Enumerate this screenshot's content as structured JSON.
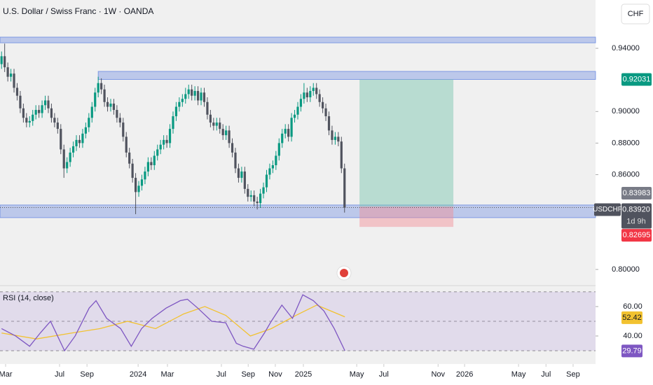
{
  "chart_data": [
    {
      "type": "candlestick",
      "title": "U.S. Dollar / Swiss Franc · 1W · OANDA",
      "currency": "CHF",
      "symbol": "USDCHF",
      "countdown": "1d 9h",
      "up_color": "#089981",
      "down_color": "#50535e",
      "xlim": [
        -0.5,
        190.5
      ],
      "xticks": [
        {
          "value": 1.3,
          "label": "Mar"
        },
        {
          "value": 18.6,
          "label": "Jul"
        },
        {
          "value": 27.4,
          "label": "Sep"
        },
        {
          "value": 43.8,
          "label": "2024"
        },
        {
          "value": 53.2,
          "label": "Mar"
        },
        {
          "value": 70.5,
          "label": "Jul"
        },
        {
          "value": 79.1,
          "label": "Sep"
        },
        {
          "value": 87.8,
          "label": "Nov"
        },
        {
          "value": 96.8,
          "label": "2025"
        },
        {
          "value": 113.9,
          "label": "May"
        },
        {
          "value": 122.6,
          "label": "Jul"
        },
        {
          "value": 140,
          "label": "Nov"
        },
        {
          "value": 148.5,
          "label": "2026"
        },
        {
          "value": 165.8,
          "label": "May"
        },
        {
          "value": 174.6,
          "label": "Jul"
        },
        {
          "value": 183.3,
          "label": "Sep"
        }
      ],
      "ylim": [
        0.7911,
        0.9706
      ],
      "yticks": [
        {
          "value": 0.94,
          "label": "0.94000"
        },
        {
          "value": 0.9,
          "label": "0.90000"
        },
        {
          "value": 0.88,
          "label": "0.88000"
        },
        {
          "value": 0.86,
          "label": "0.86000"
        },
        {
          "value": 0.8,
          "label": "0.80000"
        }
      ],
      "x": [
        0,
        1,
        2,
        3,
        4,
        5,
        6,
        7,
        8,
        9,
        10,
        11,
        12,
        13,
        14,
        15,
        16,
        17,
        18,
        19,
        20,
        21,
        22,
        23,
        24,
        25,
        26,
        27,
        28,
        29,
        30,
        31,
        32,
        33,
        34,
        35,
        36,
        37,
        38,
        39,
        40,
        41,
        42,
        43,
        44,
        45,
        46,
        47,
        48,
        49,
        50,
        51,
        52,
        53,
        54,
        55,
        56,
        57,
        58,
        59,
        60,
        61,
        62,
        63,
        64,
        65,
        66,
        67,
        68,
        69,
        70,
        71,
        72,
        73,
        74,
        75,
        76,
        77,
        78,
        79,
        80,
        81,
        82,
        83,
        84,
        85,
        86,
        87,
        88,
        89,
        90,
        91,
        92,
        93,
        94,
        95,
        96,
        97,
        98,
        99,
        100,
        101,
        102,
        103,
        104,
        105,
        106,
        107,
        108,
        109,
        110
      ],
      "open": [
        0.93,
        0.935,
        0.928,
        0.922,
        0.924,
        0.915,
        0.91,
        0.902,
        0.896,
        0.893,
        0.894,
        0.898,
        0.901,
        0.899,
        0.904,
        0.907,
        0.902,
        0.896,
        0.893,
        0.889,
        0.876,
        0.864,
        0.868,
        0.874,
        0.878,
        0.882,
        0.88,
        0.886,
        0.89,
        0.896,
        0.903,
        0.912,
        0.918,
        0.914,
        0.906,
        0.903,
        0.905,
        0.901,
        0.896,
        0.893,
        0.884,
        0.874,
        0.867,
        0.858,
        0.849,
        0.853,
        0.857,
        0.862,
        0.868,
        0.866,
        0.872,
        0.876,
        0.879,
        0.882,
        0.88,
        0.889,
        0.897,
        0.903,
        0.906,
        0.908,
        0.911,
        0.914,
        0.91,
        0.913,
        0.907,
        0.912,
        0.906,
        0.898,
        0.893,
        0.891,
        0.893,
        0.889,
        0.885,
        0.888,
        0.88,
        0.874,
        0.864,
        0.858,
        0.862,
        0.851,
        0.846,
        0.847,
        0.843,
        0.842,
        0.848,
        0.852,
        0.86,
        0.864,
        0.866,
        0.872,
        0.88,
        0.886,
        0.889,
        0.884,
        0.896,
        0.898,
        0.903,
        0.908,
        0.912,
        0.909,
        0.913,
        0.915,
        0.911,
        0.906,
        0.902,
        0.897,
        0.888,
        0.882,
        0.884,
        0.881,
        0.864
      ],
      "high": [
        0.938,
        0.943,
        0.931,
        0.927,
        0.927,
        0.918,
        0.913,
        0.905,
        0.899,
        0.897,
        0.901,
        0.904,
        0.904,
        0.907,
        0.91,
        0.91,
        0.905,
        0.899,
        0.896,
        0.892,
        0.879,
        0.871,
        0.877,
        0.881,
        0.885,
        0.885,
        0.889,
        0.893,
        0.899,
        0.906,
        0.915,
        0.922,
        0.921,
        0.917,
        0.909,
        0.908,
        0.908,
        0.904,
        0.899,
        0.896,
        0.887,
        0.877,
        0.87,
        0.861,
        0.856,
        0.86,
        0.865,
        0.871,
        0.871,
        0.875,
        0.879,
        0.882,
        0.885,
        0.885,
        0.892,
        0.9,
        0.906,
        0.909,
        0.911,
        0.915,
        0.917,
        0.917,
        0.916,
        0.916,
        0.915,
        0.915,
        0.909,
        0.901,
        0.896,
        0.896,
        0.896,
        0.892,
        0.891,
        0.891,
        0.883,
        0.877,
        0.867,
        0.865,
        0.865,
        0.854,
        0.85,
        0.85,
        0.846,
        0.851,
        0.855,
        0.863,
        0.867,
        0.869,
        0.875,
        0.883,
        0.889,
        0.892,
        0.892,
        0.899,
        0.901,
        0.906,
        0.911,
        0.918,
        0.915,
        0.916,
        0.918,
        0.918,
        0.914,
        0.909,
        0.905,
        0.9,
        0.891,
        0.887,
        0.887,
        0.884,
        0.867
      ],
      "low": [
        0.927,
        0.925,
        0.919,
        0.919,
        0.912,
        0.907,
        0.899,
        0.893,
        0.89,
        0.89,
        0.891,
        0.895,
        0.896,
        0.896,
        0.901,
        0.899,
        0.893,
        0.89,
        0.886,
        0.873,
        0.858,
        0.861,
        0.865,
        0.871,
        0.875,
        0.877,
        0.877,
        0.883,
        0.887,
        0.893,
        0.9,
        0.909,
        0.911,
        0.903,
        0.9,
        0.9,
        0.898,
        0.893,
        0.89,
        0.881,
        0.871,
        0.864,
        0.855,
        0.835,
        0.846,
        0.85,
        0.854,
        0.859,
        0.863,
        0.863,
        0.869,
        0.873,
        0.876,
        0.877,
        0.877,
        0.886,
        0.894,
        0.9,
        0.903,
        0.905,
        0.908,
        0.907,
        0.907,
        0.904,
        0.904,
        0.903,
        0.895,
        0.89,
        0.888,
        0.888,
        0.886,
        0.882,
        0.882,
        0.877,
        0.871,
        0.861,
        0.855,
        0.855,
        0.848,
        0.843,
        0.843,
        0.84,
        0.838,
        0.839,
        0.845,
        0.849,
        0.857,
        0.861,
        0.863,
        0.869,
        0.877,
        0.883,
        0.881,
        0.881,
        0.893,
        0.895,
        0.9,
        0.905,
        0.906,
        0.906,
        0.91,
        0.908,
        0.903,
        0.899,
        0.894,
        0.885,
        0.879,
        0.879,
        0.878,
        0.861,
        0.836
      ],
      "close": [
        0.935,
        0.928,
        0.922,
        0.924,
        0.915,
        0.91,
        0.902,
        0.896,
        0.893,
        0.894,
        0.898,
        0.901,
        0.899,
        0.904,
        0.907,
        0.902,
        0.896,
        0.893,
        0.889,
        0.876,
        0.864,
        0.868,
        0.874,
        0.878,
        0.882,
        0.88,
        0.886,
        0.89,
        0.896,
        0.903,
        0.912,
        0.918,
        0.914,
        0.906,
        0.903,
        0.905,
        0.901,
        0.896,
        0.893,
        0.884,
        0.874,
        0.867,
        0.858,
        0.849,
        0.853,
        0.857,
        0.862,
        0.868,
        0.866,
        0.872,
        0.876,
        0.879,
        0.882,
        0.88,
        0.889,
        0.897,
        0.903,
        0.906,
        0.908,
        0.911,
        0.914,
        0.91,
        0.913,
        0.907,
        0.912,
        0.906,
        0.898,
        0.893,
        0.891,
        0.893,
        0.889,
        0.885,
        0.888,
        0.88,
        0.874,
        0.864,
        0.858,
        0.862,
        0.851,
        0.846,
        0.847,
        0.843,
        0.842,
        0.848,
        0.852,
        0.86,
        0.864,
        0.866,
        0.872,
        0.88,
        0.886,
        0.889,
        0.884,
        0.896,
        0.898,
        0.903,
        0.908,
        0.912,
        0.909,
        0.913,
        0.915,
        0.911,
        0.906,
        0.902,
        0.897,
        0.888,
        0.882,
        0.884,
        0.881,
        0.864,
        0.8392
      ],
      "last_price": {
        "value": 0.8392,
        "label": "0.83920"
      },
      "zones": [
        {
          "x": [
            -0.5,
            190.5
          ],
          "y": [
            0.9435,
            0.9471
          ]
        },
        {
          "x": [
            31,
            190.5
          ],
          "y": [
            0.9203,
            0.9254
          ]
        },
        {
          "x": [
            -0.5,
            190.5
          ],
          "y": [
            0.8328,
            0.8408
          ]
        }
      ],
      "zone_color": "#5b7fe0",
      "position": {
        "x": [
          114.8,
          144.9
        ],
        "entry": 0.83983,
        "target": 0.92031,
        "stop": 0.82695
      }
    },
    {
      "type": "line",
      "title": "RSI (14, close)",
      "ylim": [
        20,
        73.3
      ],
      "yticks": [
        {
          "value": 60,
          "label": "60.00"
        },
        {
          "value": 40,
          "label": "40.00"
        }
      ],
      "levels": [
        70,
        50,
        30
      ],
      "series": [
        {
          "color": "#7e57c2",
          "x": [
            0,
            4.5,
            9,
            12.4,
            15.7,
            20.2,
            23.6,
            28.1,
            30.3,
            33.7,
            38.2,
            41.6,
            44.9,
            48.3,
            52.8,
            57.3,
            59.6,
            62.9,
            67.4,
            71.9,
            75.3,
            77.5,
            80.9,
            84.3,
            86.5,
            89.9,
            93.3,
            96.6,
            100,
            103.4,
            106.7,
            110.1
          ],
          "values": [
            45,
            40,
            33,
            42,
            50,
            30,
            40,
            59,
            64,
            52,
            45,
            33,
            45,
            52,
            59,
            64,
            65,
            59,
            50,
            49,
            35,
            33,
            31,
            42,
            50,
            61,
            52,
            68,
            64,
            57,
            45,
            30
          ],
          "last": 29.79
        },
        {
          "color": "#f2c230",
          "x": [
            0,
            11.2,
            22.5,
            31.5,
            40.4,
            49.4,
            58.4,
            65.2,
            71.9,
            79.8,
            86.5,
            94.4,
            101.1,
            110.1
          ],
          "values": [
            42,
            38,
            42,
            45,
            50,
            45,
            55,
            60,
            54,
            40,
            45,
            54,
            61,
            53
          ],
          "last": 52.42
        }
      ]
    }
  ]
}
